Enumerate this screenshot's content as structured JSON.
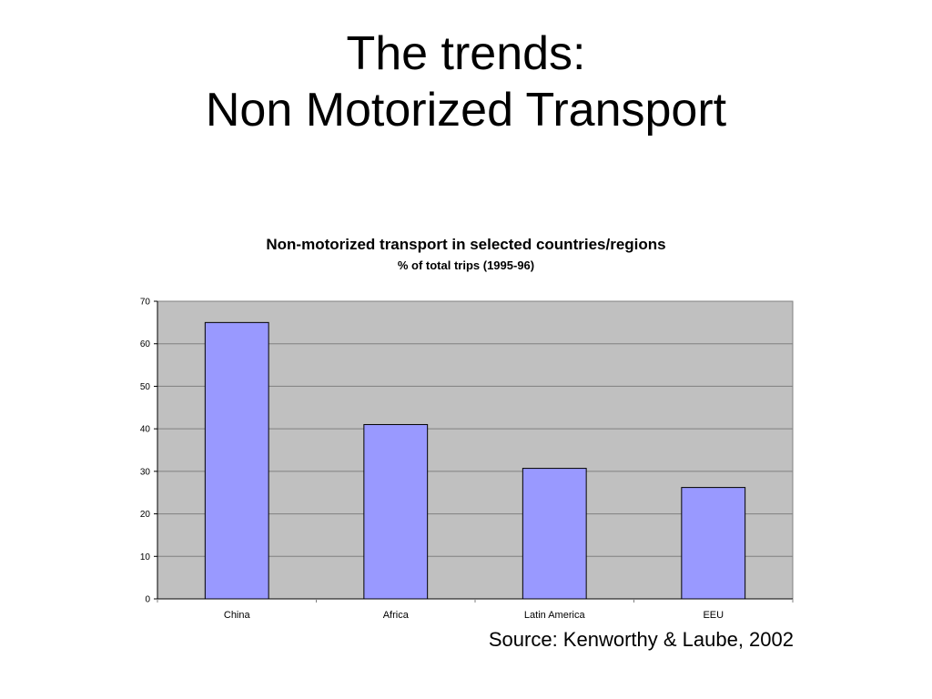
{
  "slide": {
    "title_line1": "The trends:",
    "title_line2": "Non Motorized Transport",
    "source": "Source: Kenworthy & Laube, 2002"
  },
  "chart_data": {
    "type": "bar",
    "title": "Non-motorized transport in selected countries/regions",
    "subtitle": "% of total trips (1995-96)",
    "categories": [
      "China",
      "Africa",
      "Latin America",
      "EEU"
    ],
    "values": [
      65,
      41,
      30.7,
      26.2
    ],
    "ylim": [
      0,
      70
    ],
    "yticks": [
      0,
      10,
      20,
      30,
      40,
      50,
      60,
      70
    ],
    "grid": true,
    "legend": "none",
    "colors": {
      "bar_fill": "#9999ff",
      "bar_stroke": "#000000",
      "plot_background": "#c0c0c0",
      "gridline": "#808080",
      "axis": "#808080"
    }
  }
}
